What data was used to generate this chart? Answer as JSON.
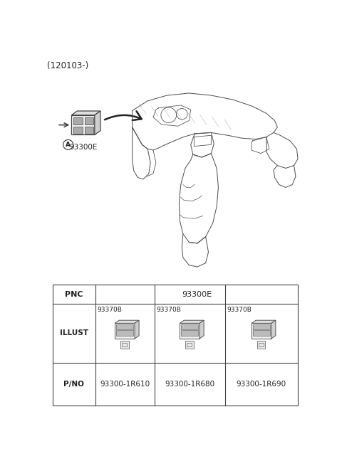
{
  "title": "(120103-)",
  "bg_color": "#ffffff",
  "line_color": "#444444",
  "text_color": "#222222",
  "arrow_label": "93300E",
  "table": {
    "header_pnc": "PNC",
    "header_pnc_val": "93300E",
    "row2_label": "ILLUST",
    "illust_labels": [
      "93370B",
      "93370B",
      "93370B"
    ],
    "row3_label": "P/NO",
    "pno_values": [
      "93300-1R610",
      "93300-1R680",
      "93300-1R690"
    ]
  },
  "fig_w": 4.8,
  "fig_h": 6.55,
  "dpi": 100
}
